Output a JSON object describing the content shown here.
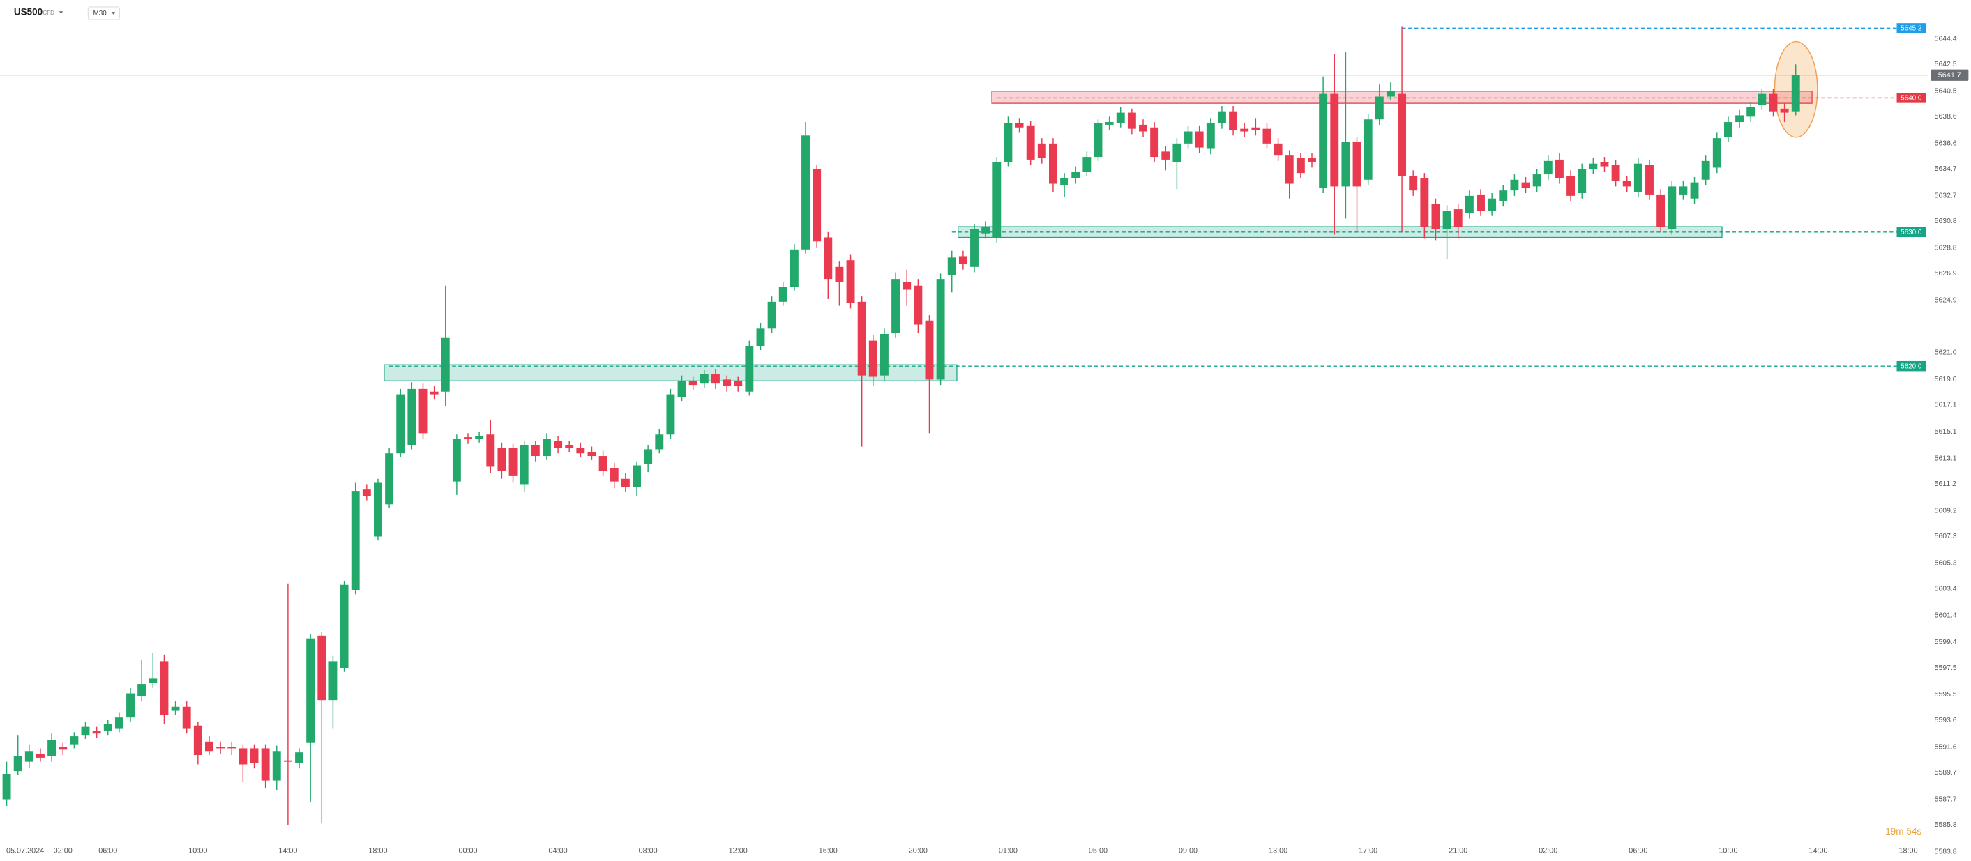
{
  "header": {
    "symbol": "US500",
    "instrument_type": "CFD",
    "timeframe": "M30"
  },
  "chart_data": {
    "type": "candlestick",
    "categories": [
      "05.07.2024",
      null,
      null,
      null,
      null,
      "02:00",
      null,
      null,
      null,
      "06:00",
      null,
      null,
      null,
      null,
      null,
      null,
      null,
      "10:00",
      null,
      null,
      null,
      null,
      null,
      null,
      null,
      "14:00",
      null,
      null,
      null,
      null,
      null,
      null,
      null,
      "18:00",
      null,
      null,
      null,
      null,
      null,
      null,
      null,
      "00:00",
      null,
      null,
      null,
      null,
      null,
      null,
      null,
      "04:00",
      null,
      null,
      null,
      null,
      null,
      null,
      null,
      "08:00",
      null,
      null,
      null,
      null,
      null,
      null,
      null,
      "12:00",
      null,
      null,
      null,
      null,
      null,
      null,
      null,
      "16:00",
      null,
      null,
      null,
      null,
      null,
      null,
      null,
      "20:00",
      null,
      null,
      null,
      null,
      null,
      null,
      null,
      "01:00",
      null,
      null,
      null,
      null,
      null,
      null,
      null,
      "05:00",
      null,
      null,
      null,
      null,
      null,
      null,
      null,
      "09:00",
      null,
      null,
      null,
      null,
      null,
      null,
      null,
      "13:00",
      null,
      null,
      null,
      null,
      null,
      null,
      null,
      "17:00",
      null,
      null,
      null,
      null,
      null,
      null,
      null,
      "21:00",
      null,
      null,
      null,
      null,
      null,
      null,
      null,
      "02:00",
      null,
      null,
      null,
      null,
      null,
      null,
      null,
      "06:00",
      null,
      null,
      null,
      null,
      null,
      null,
      null,
      "10:00",
      null,
      null,
      null,
      null,
      null,
      null,
      null,
      "14:00",
      null,
      null,
      null,
      null,
      null,
      null,
      null,
      "18:00"
    ],
    "open": [
      5587.7,
      5589.8,
      5590.5,
      5591.1,
      5590.9,
      5591.6,
      5591.8,
      5592.5,
      5592.8,
      5592.8,
      5593.0,
      5593.8,
      5595.4,
      5596.4,
      5598.0,
      5594.3,
      5594.6,
      5593.2,
      5592.0,
      5591.6,
      5591.6,
      5591.5,
      5591.5,
      5591.5,
      5589.1,
      5590.6,
      5590.4,
      5591.9,
      5599.9,
      5595.1,
      5597.5,
      5603.3,
      5610.8,
      5607.3,
      5609.7,
      5613.5,
      5614.1,
      5618.3,
      5618.1,
      5618.1,
      5611.4,
      5614.7,
      5614.6,
      5614.9,
      5613.9,
      5613.9,
      5611.2,
      5614.1,
      5613.3,
      5614.4,
      5614.1,
      5613.9,
      5613.6,
      5613.3,
      5612.4,
      5611.6,
      5611.0,
      5612.7,
      5613.8,
      5614.9,
      5617.7,
      5618.9,
      5618.7,
      5619.4,
      5619.0,
      5618.9,
      5618.1,
      5621.5,
      5622.8,
      5624.8,
      5625.9,
      5628.7,
      5634.7,
      5629.6,
      5627.4,
      5627.9,
      5624.8,
      5621.9,
      5619.3,
      5622.5,
      5626.3,
      5626.0,
      5623.4,
      5619.0,
      5626.8,
      5628.2,
      5627.4,
      5629.9,
      5629.6,
      5635.2,
      5638.1,
      5637.9,
      5636.6,
      5636.6,
      5633.5,
      5634.0,
      5634.5,
      5635.6,
      5638.0,
      5638.1,
      5638.9,
      5638.0,
      5637.8,
      5636.0,
      5635.2,
      5636.6,
      5637.5,
      5636.2,
      5638.1,
      5639.0,
      5637.7,
      5637.8,
      5637.7,
      5636.6,
      5635.7,
      5635.5,
      5635.5,
      5633.3,
      5640.3,
      5633.4,
      5636.7,
      5633.9,
      5638.4,
      5640.1,
      5640.3,
      5634.2,
      5634.0,
      5632.1,
      5630.2,
      5631.7,
      5631.4,
      5632.8,
      5631.6,
      5632.3,
      5633.1,
      5633.7,
      5633.4,
      5634.3,
      5635.4,
      5634.2,
      5632.9,
      5634.7,
      5635.2,
      5635.0,
      5633.8,
      5633.0,
      5635.0,
      5632.8,
      5630.2,
      5632.8,
      5632.5,
      5633.9,
      5634.8,
      5637.1,
      5638.2,
      5638.6,
      5639.5,
      5640.3,
      5639.2,
      5639.0,
      null,
      null,
      null,
      null,
      null,
      null,
      null,
      null,
      null,
      null
    ],
    "high": [
      5590.5,
      5592.5,
      5591.8,
      5591.5,
      5592.6,
      5591.9,
      5592.7,
      5593.5,
      5593.1,
      5593.6,
      5594.2,
      5596.0,
      5598.1,
      5598.6,
      5598.5,
      5595.0,
      5595.0,
      5593.5,
      5592.4,
      5592.0,
      5592.0,
      5591.8,
      5591.8,
      5591.8,
      5591.7,
      5603.8,
      5591.5,
      5600.0,
      5600.2,
      5598.4,
      5604.0,
      5611.3,
      5611.2,
      5611.6,
      5613.9,
      5618.3,
      5618.8,
      5618.7,
      5618.5,
      5626.0,
      5614.9,
      5615.0,
      5615.1,
      5616.0,
      5614.3,
      5614.2,
      5614.4,
      5614.4,
      5615.0,
      5614.8,
      5614.4,
      5614.3,
      5614.0,
      5613.7,
      5612.8,
      5612.0,
      5612.9,
      5614.1,
      5615.3,
      5618.3,
      5619.3,
      5619.2,
      5619.7,
      5619.8,
      5619.3,
      5619.2,
      5621.9,
      5623.2,
      5625.2,
      5626.3,
      5629.1,
      5638.2,
      5635.0,
      5630.0,
      5627.8,
      5628.3,
      5625.2,
      5622.3,
      5622.8,
      5627.0,
      5627.2,
      5626.5,
      5623.8,
      5626.9,
      5628.6,
      5628.6,
      5630.6,
      5630.8,
      5635.6,
      5638.6,
      5638.5,
      5638.3,
      5637.0,
      5637.0,
      5634.4,
      5634.9,
      5636.0,
      5638.4,
      5638.6,
      5639.3,
      5639.2,
      5638.4,
      5638.2,
      5636.4,
      5637.0,
      5637.9,
      5637.9,
      5638.5,
      5639.4,
      5639.4,
      5638.1,
      5638.5,
      5638.1,
      5637.0,
      5636.1,
      5635.9,
      5635.9,
      5641.6,
      5643.3,
      5643.4,
      5637.1,
      5638.8,
      5641.0,
      5641.2,
      5645.3,
      5634.6,
      5634.4,
      5632.5,
      5632.0,
      5632.1,
      5633.1,
      5633.2,
      5632.9,
      5633.5,
      5634.3,
      5634.1,
      5634.7,
      5635.7,
      5635.9,
      5634.6,
      5635.1,
      5635.5,
      5635.6,
      5635.4,
      5634.2,
      5635.5,
      5635.4,
      5633.2,
      5633.8,
      5633.8,
      5634.1,
      5635.7,
      5637.4,
      5638.6,
      5639.1,
      5639.7,
      5640.7,
      5640.7,
      5639.6,
      5642.5,
      null,
      null,
      null,
      null,
      null,
      null,
      null,
      null,
      null,
      null
    ],
    "low": [
      5587.2,
      5589.5,
      5590.0,
      5590.5,
      5590.5,
      5591.0,
      5591.5,
      5592.2,
      5592.3,
      5592.5,
      5592.7,
      5593.5,
      5595.0,
      5596.0,
      5593.3,
      5594.0,
      5592.6,
      5590.3,
      5591.0,
      5591.1,
      5591.0,
      5589.0,
      5590.0,
      5588.5,
      5588.4,
      5585.8,
      5590.0,
      5587.5,
      5585.9,
      5593.0,
      5597.2,
      5603.0,
      5610.0,
      5607.0,
      5609.4,
      5613.2,
      5613.8,
      5614.6,
      5617.5,
      5617.0,
      5610.4,
      5614.2,
      5614.3,
      5612.0,
      5611.6,
      5611.3,
      5610.6,
      5612.9,
      5613.0,
      5613.5,
      5613.6,
      5613.2,
      5613.0,
      5611.8,
      5610.9,
      5610.6,
      5610.3,
      5612.1,
      5613.5,
      5614.6,
      5617.4,
      5618.2,
      5618.4,
      5618.3,
      5618.1,
      5618.1,
      5617.8,
      5621.2,
      5622.5,
      5624.5,
      5625.6,
      5628.4,
      5628.8,
      5625.0,
      5624.5,
      5624.3,
      5614.0,
      5618.5,
      5618.9,
      5622.1,
      5624.5,
      5622.5,
      5615.0,
      5618.6,
      5625.5,
      5627.2,
      5627.0,
      5629.5,
      5629.2,
      5634.9,
      5637.4,
      5635.0,
      5635.1,
      5633.0,
      5632.6,
      5633.6,
      5634.2,
      5635.3,
      5637.6,
      5637.8,
      5637.3,
      5637.1,
      5635.2,
      5634.6,
      5633.2,
      5636.2,
      5635.9,
      5635.8,
      5637.7,
      5637.2,
      5637.1,
      5637.2,
      5636.2,
      5635.3,
      5632.5,
      5634.0,
      5634.8,
      5632.9,
      5629.8,
      5631.0,
      5630.0,
      5633.5,
      5638.0,
      5639.8,
      5630.0,
      5632.7,
      5629.5,
      5629.4,
      5628.0,
      5629.5,
      5631.0,
      5631.2,
      5631.2,
      5631.9,
      5632.7,
      5632.9,
      5633.0,
      5633.9,
      5633.6,
      5632.3,
      5632.5,
      5634.3,
      5634.5,
      5633.4,
      5633.0,
      5632.6,
      5632.4,
      5630.0,
      5629.8,
      5632.4,
      5632.1,
      5633.5,
      5634.4,
      5636.7,
      5637.8,
      5638.2,
      5639.1,
      5638.6,
      5638.2,
      5638.7,
      null,
      null,
      null,
      null,
      null,
      null,
      null,
      null,
      null,
      null
    ],
    "close": [
      5589.6,
      5590.9,
      5591.3,
      5590.8,
      5592.1,
      5591.4,
      5592.4,
      5593.1,
      5592.6,
      5593.3,
      5593.8,
      5595.6,
      5596.3,
      5596.7,
      5594.0,
      5594.6,
      5593.0,
      5591.0,
      5591.3,
      5591.5,
      5591.5,
      5590.3,
      5590.4,
      5589.1,
      5591.3,
      5590.5,
      5591.2,
      5599.7,
      5595.1,
      5598.0,
      5603.7,
      5610.7,
      5610.3,
      5611.3,
      5613.5,
      5617.9,
      5618.3,
      5615.0,
      5617.9,
      5622.1,
      5614.6,
      5614.6,
      5614.8,
      5612.5,
      5612.2,
      5611.8,
      5614.1,
      5613.3,
      5614.6,
      5613.9,
      5613.9,
      5613.5,
      5613.3,
      5612.2,
      5611.4,
      5611.0,
      5612.6,
      5613.8,
      5614.9,
      5617.9,
      5618.9,
      5618.6,
      5619.4,
      5618.7,
      5618.5,
      5618.5,
      5621.5,
      5622.8,
      5624.8,
      5625.9,
      5628.7,
      5637.2,
      5629.3,
      5626.5,
      5626.3,
      5624.7,
      5619.3,
      5619.2,
      5622.4,
      5626.5,
      5625.7,
      5623.1,
      5619.0,
      5626.5,
      5628.1,
      5627.6,
      5630.2,
      5630.4,
      5635.2,
      5638.1,
      5637.8,
      5635.4,
      5635.5,
      5633.6,
      5634.0,
      5634.5,
      5635.6,
      5638.1,
      5638.2,
      5638.9,
      5637.7,
      5637.5,
      5635.6,
      5635.4,
      5636.6,
      5637.5,
      5636.3,
      5638.1,
      5639.0,
      5637.6,
      5637.5,
      5637.6,
      5636.6,
      5635.7,
      5633.6,
      5634.4,
      5635.2,
      5640.3,
      5633.4,
      5636.7,
      5633.4,
      5638.4,
      5640.1,
      5640.5,
      5634.2,
      5633.1,
      5630.4,
      5630.2,
      5631.6,
      5630.4,
      5632.7,
      5631.6,
      5632.5,
      5633.1,
      5633.9,
      5633.3,
      5634.3,
      5635.3,
      5634.0,
      5632.7,
      5634.7,
      5635.1,
      5634.9,
      5633.8,
      5633.4,
      5635.1,
      5632.8,
      5630.4,
      5633.4,
      5633.4,
      5633.7,
      5635.3,
      5637.0,
      5638.2,
      5638.7,
      5639.3,
      5640.3,
      5639.0,
      5638.9,
      5641.7,
      null,
      null,
      null,
      null,
      null,
      null,
      null,
      null,
      null,
      null
    ],
    "up_color": "#22a86b",
    "down_color": "#ea3a50",
    "ylim": [
      5583.1,
      5647.3
    ],
    "yticks": [
      5644.4,
      5642.5,
      5640.5,
      5638.6,
      5636.6,
      5634.7,
      5632.7,
      5630.8,
      5628.8,
      5626.9,
      5624.9,
      {
        "value": 5621,
        "label": "5621.0"
      },
      {
        "value": 5619,
        "label": "5619.0"
      },
      5617.1,
      5615.1,
      5613.1,
      5611.2,
      5609.2,
      5607.3,
      5605.3,
      5603.4,
      5601.4,
      5599.4,
      5597.5,
      5595.5,
      5593.6,
      5591.6,
      5589.7,
      5587.7,
      5585.8,
      5583.8
    ],
    "levels": [
      {
        "value": 5645.2,
        "label": "5645.2",
        "color": "#1e9ee8",
        "start": 124
      },
      {
        "value": 5640,
        "label": "5640.0",
        "color": "#e53946",
        "start": 88
      },
      {
        "value": 5630,
        "label": "5630.0",
        "color": "#16a585",
        "start": 84
      },
      {
        "value": 5620,
        "label": "5620.0",
        "color": "#16a585",
        "start": 34
      }
    ],
    "zones": [
      {
        "low": 5639.6,
        "high": 5640.5,
        "start": 88,
        "end": 160,
        "color": "#e53946"
      },
      {
        "low": 5629.6,
        "high": 5630.4,
        "start": 85,
        "end": 152,
        "color": "#16a585"
      },
      {
        "low": 5618.9,
        "high": 5620.1,
        "start": 34,
        "end": 84,
        "color": "#16a585"
      }
    ],
    "current_price": 5641.7,
    "countdown": "19m 54s"
  }
}
